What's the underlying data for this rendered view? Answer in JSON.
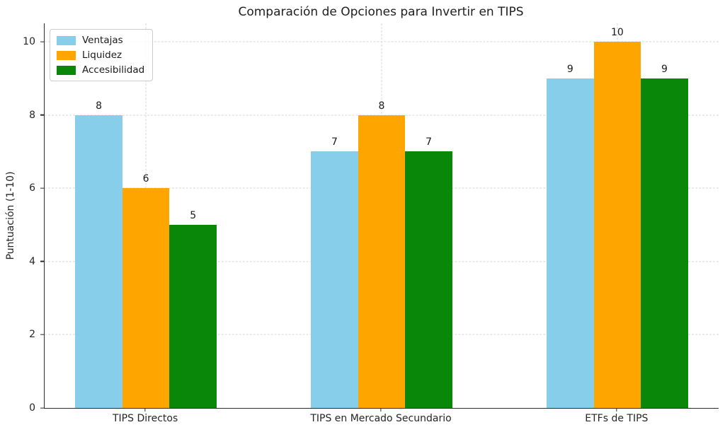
{
  "chart_data": {
    "type": "bar",
    "title": "Comparación de Opciones para Invertir en TIPS",
    "xlabel": "",
    "ylabel": "Puntuación (1-10)",
    "categories": [
      "TIPS Directos",
      "TIPS en Mercado Secundario",
      "ETFs de TIPS"
    ],
    "series": [
      {
        "name": "Ventajas",
        "color": "#87CEEB",
        "values": [
          8,
          7,
          9
        ]
      },
      {
        "name": "Liquidez",
        "color": "#FFA500",
        "values": [
          6,
          8,
          10
        ]
      },
      {
        "name": "Accesibilidad",
        "color": "#098709",
        "values": [
          5,
          7,
          9
        ]
      }
    ],
    "ylim": [
      0,
      10.5
    ],
    "yticks": [
      0,
      2,
      4,
      6,
      8,
      10
    ],
    "xlim": [
      -0.43,
      2.43
    ],
    "bar_width": 0.2,
    "grid": true,
    "grid_style": "dashed",
    "legend_position": "upper-left",
    "show_value_labels": true,
    "background": "#ffffff",
    "spine_color": "#2b2b2b"
  }
}
